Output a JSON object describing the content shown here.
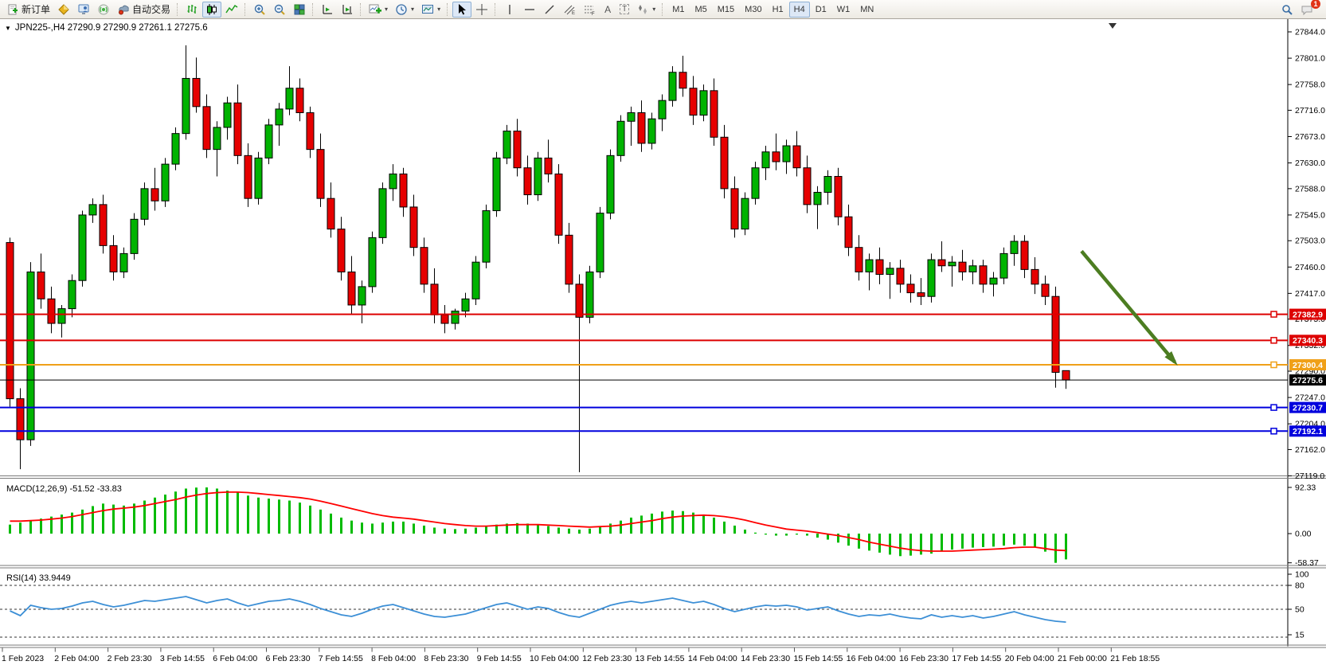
{
  "toolbar": {
    "new_order_label": "新订单",
    "autotrading_label": "自动交易",
    "text_tool_glyph": "A",
    "label_tool_glyph": "T",
    "chat_badge": "1",
    "timeframes": [
      {
        "label": "M1",
        "active": false
      },
      {
        "label": "M5",
        "active": false
      },
      {
        "label": "M15",
        "active": false
      },
      {
        "label": "M30",
        "active": false
      },
      {
        "label": "H1",
        "active": false
      },
      {
        "label": "H4",
        "active": true
      },
      {
        "label": "D1",
        "active": false
      },
      {
        "label": "W1",
        "active": false
      },
      {
        "label": "MN",
        "active": false
      }
    ]
  },
  "chart": {
    "title": "JPN225-,H4  27290.9 27290.9 27261.1 27275.6"
  },
  "chart_data": {
    "type": "candlestick",
    "symbol": "JPN225-",
    "timeframe": "H4",
    "current_ohlc": {
      "open": 27290.9,
      "high": 27290.9,
      "low": 27261.1,
      "close": 27275.6
    },
    "price_axis": {
      "top": 27844.0,
      "bottom": 27119.0,
      "ticks": [
        27844.0,
        27801.0,
        27758.0,
        27716.0,
        27673.0,
        27630.0,
        27588.0,
        27545.0,
        27503.0,
        27460.0,
        27417.0,
        27375.0,
        27332.0,
        27290.0,
        27247.0,
        27204.0,
        27162.0,
        27119.0
      ]
    },
    "time_labels": [
      "1 Feb 2023",
      "2 Feb 04:00",
      "2 Feb 23:30",
      "3 Feb 14:55",
      "6 Feb 04:00",
      "6 Feb 23:30",
      "7 Feb 14:55",
      "8 Feb 04:00",
      "8 Feb 23:30",
      "9 Feb 14:55",
      "10 Feb 04:00",
      "12 Feb 23:30",
      "13 Feb 14:55",
      "14 Feb 04:00",
      "14 Feb 23:30",
      "15 Feb 14:55",
      "16 Feb 04:00",
      "16 Feb 23:30",
      "17 Feb 14:55",
      "20 Feb 04:00",
      "21 Feb 00:00",
      "21 Feb 18:55"
    ],
    "colors": {
      "up": "#00b300",
      "down": "#e60000",
      "wick": "#000000",
      "macd_hist": "#00bb00",
      "macd_signal": "#ff0000",
      "rsi": "#3c8fd6",
      "arrow": "#4c7d21",
      "line_red": "#dd0000",
      "line_orange": "#f0a018",
      "line_blue": "#0000dd"
    },
    "h_lines": [
      {
        "price": 27382.9,
        "label": "27382.9",
        "color": "#dd0000",
        "thickness": 2,
        "handle": true,
        "current_price": false
      },
      {
        "price": 27340.3,
        "label": "27340.3",
        "color": "#dd0000",
        "thickness": 2,
        "handle": true,
        "current_price": false
      },
      {
        "price": 27300.4,
        "label": "27300.4",
        "color": "#f0a018",
        "thickness": 2,
        "handle": true,
        "current_price": false
      },
      {
        "price": 27275.6,
        "label": "27275.6",
        "color": "#000000",
        "thickness": 1,
        "handle": false,
        "current_price": true
      },
      {
        "price": 27230.7,
        "label": "27230.7",
        "color": "#0000dd",
        "thickness": 2,
        "handle": true,
        "current_price": false
      },
      {
        "price": 27192.1,
        "label": "27192.1",
        "color": "#0000dd",
        "thickness": 2,
        "handle": true,
        "current_price": false
      }
    ],
    "annotations": [
      {
        "type": "trend-arrow",
        "direction": "down-right",
        "from": {
          "index": 103.5,
          "price": 27486
        },
        "to": {
          "index": 112.5,
          "price": 27305
        },
        "color": "#4c7d21"
      },
      {
        "type": "data-end-marker",
        "index": 106.5
      }
    ],
    "candles": [
      [
        27500,
        27508,
        27232,
        27245
      ],
      [
        27245,
        27262,
        27130,
        27178
      ],
      [
        27178,
        27468,
        27168,
        27452
      ],
      [
        27452,
        27482,
        27392,
        27408
      ],
      [
        27408,
        27428,
        27352,
        27368
      ],
      [
        27368,
        27398,
        27345,
        27392
      ],
      [
        27392,
        27448,
        27378,
        27438
      ],
      [
        27438,
        27552,
        27428,
        27545
      ],
      [
        27545,
        27572,
        27532,
        27562
      ],
      [
        27562,
        27578,
        27482,
        27495
      ],
      [
        27495,
        27512,
        27438,
        27452
      ],
      [
        27452,
        27492,
        27442,
        27482
      ],
      [
        27482,
        27548,
        27472,
        27538
      ],
      [
        27538,
        27598,
        27528,
        27588
      ],
      [
        27588,
        27622,
        27552,
        27568
      ],
      [
        27568,
        27638,
        27558,
        27628
      ],
      [
        27628,
        27688,
        27618,
        27678
      ],
      [
        27678,
        27822,
        27668,
        27768
      ],
      [
        27768,
        27802,
        27712,
        27722
      ],
      [
        27722,
        27742,
        27638,
        27652
      ],
      [
        27652,
        27698,
        27608,
        27688
      ],
      [
        27688,
        27738,
        27668,
        27728
      ],
      [
        27728,
        27758,
        27628,
        27642
      ],
      [
        27642,
        27662,
        27558,
        27572
      ],
      [
        27572,
        27648,
        27562,
        27638
      ],
      [
        27638,
        27702,
        27628,
        27692
      ],
      [
        27692,
        27728,
        27658,
        27718
      ],
      [
        27718,
        27788,
        27708,
        27752
      ],
      [
        27752,
        27768,
        27698,
        27712
      ],
      [
        27712,
        27722,
        27638,
        27652
      ],
      [
        27652,
        27678,
        27558,
        27572
      ],
      [
        27572,
        27598,
        27508,
        27522
      ],
      [
        27522,
        27542,
        27438,
        27452
      ],
      [
        27452,
        27478,
        27382,
        27398
      ],
      [
        27398,
        27438,
        27368,
        27428
      ],
      [
        27428,
        27518,
        27418,
        27508
      ],
      [
        27508,
        27598,
        27498,
        27588
      ],
      [
        27588,
        27628,
        27568,
        27612
      ],
      [
        27612,
        27622,
        27542,
        27558
      ],
      [
        27558,
        27578,
        27478,
        27492
      ],
      [
        27492,
        27508,
        27418,
        27432
      ],
      [
        27432,
        27458,
        27368,
        27382
      ],
      [
        27382,
        27398,
        27352,
        27368
      ],
      [
        27368,
        27392,
        27358,
        27388
      ],
      [
        27388,
        27418,
        27378,
        27408
      ],
      [
        27408,
        27478,
        27398,
        27468
      ],
      [
        27468,
        27562,
        27458,
        27552
      ],
      [
        27552,
        27648,
        27542,
        27638
      ],
      [
        27638,
        27692,
        27628,
        27682
      ],
      [
        27682,
        27702,
        27608,
        27622
      ],
      [
        27622,
        27642,
        27562,
        27578
      ],
      [
        27578,
        27648,
        27568,
        27638
      ],
      [
        27638,
        27668,
        27598,
        27612
      ],
      [
        27612,
        27628,
        27498,
        27512
      ],
      [
        27512,
        27532,
        27418,
        27432
      ],
      [
        27432,
        27448,
        27125,
        27378
      ],
      [
        27378,
        27462,
        27368,
        27452
      ],
      [
        27452,
        27558,
        27442,
        27548
      ],
      [
        27548,
        27652,
        27538,
        27642
      ],
      [
        27642,
        27708,
        27632,
        27698
      ],
      [
        27698,
        27722,
        27658,
        27712
      ],
      [
        27712,
        27732,
        27648,
        27662
      ],
      [
        27662,
        27712,
        27652,
        27702
      ],
      [
        27702,
        27742,
        27682,
        27732
      ],
      [
        27732,
        27788,
        27722,
        27778
      ],
      [
        27778,
        27805,
        27738,
        27752
      ],
      [
        27752,
        27772,
        27692,
        27708
      ],
      [
        27708,
        27758,
        27698,
        27748
      ],
      [
        27748,
        27768,
        27658,
        27672
      ],
      [
        27672,
        27692,
        27572,
        27588
      ],
      [
        27588,
        27608,
        27508,
        27522
      ],
      [
        27522,
        27582,
        27512,
        27572
      ],
      [
        27572,
        27632,
        27562,
        27622
      ],
      [
        27622,
        27658,
        27602,
        27648
      ],
      [
        27648,
        27678,
        27618,
        27632
      ],
      [
        27632,
        27668,
        27612,
        27658
      ],
      [
        27658,
        27682,
        27608,
        27622
      ],
      [
        27622,
        27642,
        27548,
        27562
      ],
      [
        27562,
        27592,
        27522,
        27582
      ],
      [
        27582,
        27618,
        27562,
        27608
      ],
      [
        27608,
        27622,
        27528,
        27542
      ],
      [
        27542,
        27562,
        27478,
        27492
      ],
      [
        27492,
        27512,
        27438,
        27452
      ],
      [
        27452,
        27482,
        27422,
        27472
      ],
      [
        27472,
        27492,
        27432,
        27448
      ],
      [
        27448,
        27468,
        27408,
        27458
      ],
      [
        27458,
        27472,
        27418,
        27432
      ],
      [
        27432,
        27448,
        27402,
        27418
      ],
      [
        27418,
        27442,
        27398,
        27412
      ],
      [
        27412,
        27482,
        27402,
        27472
      ],
      [
        27472,
        27502,
        27452,
        27462
      ],
      [
        27462,
        27478,
        27428,
        27468
      ],
      [
        27468,
        27488,
        27438,
        27452
      ],
      [
        27452,
        27472,
        27432,
        27462
      ],
      [
        27462,
        27472,
        27418,
        27432
      ],
      [
        27432,
        27452,
        27412,
        27442
      ],
      [
        27442,
        27492,
        27432,
        27482
      ],
      [
        27482,
        27512,
        27462,
        27502
      ],
      [
        27502,
        27512,
        27442,
        27456
      ],
      [
        27456,
        27476,
        27416,
        27432
      ],
      [
        27432,
        27446,
        27398,
        27412
      ],
      [
        27412,
        27428,
        27263,
        27288
      ],
      [
        27290.9,
        27290.9,
        27261.1,
        27275.6
      ]
    ],
    "indicators": [
      {
        "name": "MACD",
        "params": "12,26,9",
        "label": "MACD(12,26,9) -51.52 -33.83",
        "last_macd": -51.52,
        "last_signal": -33.83,
        "axis_labels": [
          "92.33",
          "0.00",
          "-58.37"
        ],
        "axis_values": [
          92.33,
          0.0,
          -58.37
        ],
        "histogram": [
          18,
          22,
          26,
          30,
          34,
          38,
          42,
          48,
          55,
          60,
          58,
          56,
          60,
          66,
          72,
          78,
          84,
          90,
          92,
          92.3,
          90,
          86,
          82,
          76,
          72,
          70,
          68,
          66,
          62,
          56,
          48,
          40,
          32,
          26,
          22,
          20,
          22,
          24,
          24,
          20,
          16,
          12,
          10,
          9,
          10,
          12,
          15,
          18,
          20,
          21,
          20,
          18,
          15,
          12,
          10,
          8,
          10,
          14,
          20,
          26,
          32,
          36,
          40,
          44,
          46,
          45,
          42,
          38,
          32,
          24,
          16,
          8,
          2,
          -2,
          -4,
          -4,
          -2,
          -4,
          -8,
          -12,
          -18,
          -24,
          -30,
          -34,
          -38,
          -42,
          -45,
          -44,
          -42,
          -40,
          -36,
          -32,
          -30,
          -28,
          -27,
          -26,
          -24,
          -22,
          -24,
          -28,
          -36,
          -58.37,
          -51.52
        ],
        "signal": [
          25,
          25,
          26,
          27,
          29,
          31,
          34,
          38,
          42,
          46,
          49,
          51,
          53,
          56,
          60,
          64,
          68,
          73,
          77,
          80,
          82,
          83,
          83,
          82,
          80,
          78,
          76,
          74,
          72,
          69,
          65,
          60,
          55,
          50,
          45,
          40,
          36,
          33,
          31,
          29,
          26,
          23,
          20,
          18,
          16,
          15,
          15,
          16,
          17,
          18,
          18,
          18,
          17,
          16,
          15,
          14,
          13,
          14,
          15,
          17,
          20,
          23,
          26,
          30,
          33,
          35,
          36,
          37,
          36,
          34,
          31,
          27,
          22,
          17,
          13,
          9,
          7,
          5,
          2,
          -1,
          -4,
          -8,
          -12,
          -17,
          -21,
          -25,
          -29,
          -32,
          -34,
          -35,
          -35,
          -35,
          -34,
          -33,
          -32,
          -31,
          -30,
          -28,
          -27,
          -27,
          -30,
          -33,
          -33.83
        ]
      },
      {
        "name": "RSI",
        "params": "14",
        "label": "RSI(14) 33.9449",
        "last_value": 33.9449,
        "axis_labels": [
          "100",
          "80",
          "50",
          "15"
        ],
        "levels": [
          80,
          50,
          15
        ],
        "values": [
          48,
          42,
          55,
          52,
          50,
          51,
          54,
          58,
          60,
          56,
          53,
          55,
          58,
          61,
          60,
          62,
          64,
          66,
          62,
          58,
          61,
          63,
          58,
          54,
          57,
          60,
          61,
          63,
          60,
          56,
          51,
          47,
          43,
          41,
          45,
          50,
          54,
          56,
          52,
          48,
          44,
          41,
          40,
          42,
          44,
          48,
          52,
          56,
          58,
          54,
          50,
          53,
          51,
          46,
          42,
          40,
          45,
          50,
          55,
          58,
          60,
          58,
          60,
          62,
          64,
          61,
          58,
          60,
          56,
          51,
          47,
          50,
          53,
          55,
          54,
          55,
          53,
          49,
          51,
          53,
          48,
          44,
          41,
          43,
          42,
          44,
          41,
          39,
          38,
          43,
          40,
          42,
          40,
          42,
          39,
          41,
          44,
          47,
          43,
          40,
          37,
          35,
          33.94
        ]
      }
    ]
  }
}
